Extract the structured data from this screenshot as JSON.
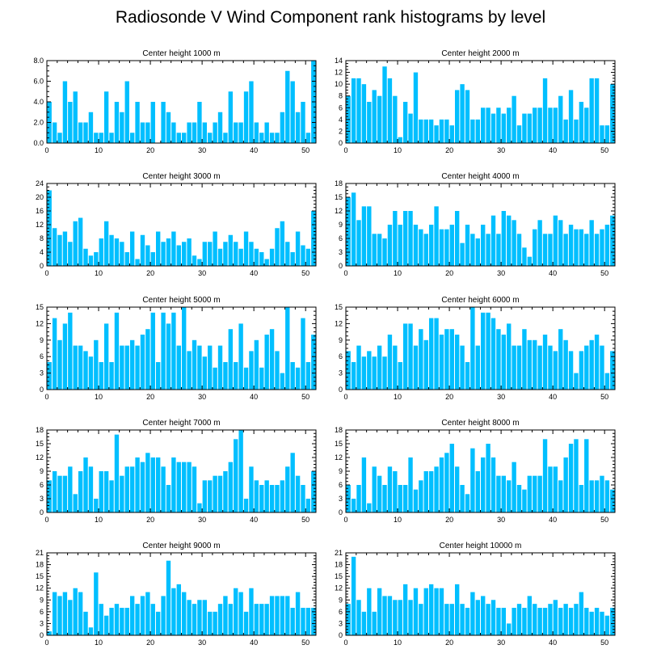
{
  "title": "Radiosonde V Wind Component rank histograms by level",
  "bar_color": "#00BFFF",
  "chart_data": [
    {
      "type": "bar",
      "title": "Center height 1000 m",
      "x_start": 0,
      "ylim": [
        0,
        8
      ],
      "yticks": [
        "0.0",
        "2.0",
        "4.0",
        "6.0",
        "8.0"
      ],
      "xticks": [
        0,
        10,
        20,
        30,
        40,
        50
      ],
      "values": [
        4,
        2,
        1,
        6,
        4,
        5,
        2,
        2,
        3,
        1,
        1,
        5,
        1,
        4,
        3,
        6,
        1,
        4,
        2,
        2,
        4,
        0,
        4,
        3,
        2,
        1,
        1,
        2,
        2,
        4,
        2,
        1,
        2,
        3,
        1,
        5,
        2,
        2,
        5,
        6,
        2,
        1,
        2,
        1,
        1,
        3,
        7,
        6,
        3,
        4,
        1,
        8
      ]
    },
    {
      "type": "bar",
      "title": "Center height 2000 m",
      "x_start": 0,
      "ylim": [
        0,
        14
      ],
      "yticks": [
        "0",
        "2",
        "4",
        "6",
        "8",
        "10",
        "12",
        "14"
      ],
      "xticks": [
        0,
        10,
        20,
        30,
        40,
        50
      ],
      "values": [
        8,
        11,
        11,
        10,
        7,
        9,
        8,
        13,
        11,
        8,
        1,
        7,
        5,
        12,
        4,
        4,
        4,
        3,
        4,
        4,
        3,
        9,
        10,
        9,
        4,
        4,
        6,
        6,
        5,
        6,
        5,
        6,
        8,
        3,
        5,
        5,
        6,
        6,
        11,
        6,
        6,
        8,
        4,
        9,
        4,
        7,
        6,
        11,
        11,
        3,
        3,
        10
      ]
    },
    {
      "type": "bar",
      "title": "Center height 3000 m",
      "x_start": 0,
      "ylim": [
        0,
        24
      ],
      "yticks": [
        "0",
        "4",
        "8",
        "12",
        "16",
        "20",
        "24"
      ],
      "xticks": [
        0,
        10,
        20,
        30,
        40,
        50
      ],
      "values": [
        22,
        11,
        9,
        10,
        7,
        13,
        14,
        5,
        3,
        4,
        8,
        13,
        9,
        8,
        7,
        4,
        10,
        2,
        9,
        6,
        4,
        10,
        7,
        8,
        10,
        6,
        7,
        8,
        3,
        2,
        7,
        7,
        10,
        5,
        7,
        9,
        7,
        5,
        10,
        7,
        5,
        4,
        2,
        5,
        11,
        13,
        7,
        4,
        10,
        6,
        5,
        16
      ]
    },
    {
      "type": "bar",
      "title": "Center height 4000 m",
      "x_start": 0,
      "ylim": [
        0,
        18
      ],
      "yticks": [
        "0",
        "3",
        "6",
        "9",
        "12",
        "15",
        "18"
      ],
      "xticks": [
        0,
        10,
        20,
        30,
        40,
        50
      ],
      "values": [
        15,
        16,
        10,
        13,
        13,
        7,
        7,
        6,
        9,
        12,
        9,
        12,
        12,
        9,
        8,
        7,
        9,
        13,
        8,
        8,
        9,
        12,
        5,
        9,
        7,
        6,
        9,
        7,
        11,
        7,
        12,
        11,
        10,
        7,
        4,
        2,
        8,
        10,
        7,
        7,
        11,
        10,
        7,
        9,
        8,
        8,
        7,
        10,
        7,
        8,
        9,
        11
      ]
    },
    {
      "type": "bar",
      "title": "Center height 5000 m",
      "x_start": 0,
      "ylim": [
        0,
        15
      ],
      "yticks": [
        "0",
        "3",
        "6",
        "9",
        "12",
        "15"
      ],
      "xticks": [
        0,
        10,
        20,
        30,
        40,
        50
      ],
      "values": [
        5,
        13,
        9,
        12,
        14,
        8,
        8,
        7,
        6,
        9,
        5,
        12,
        5,
        14,
        8,
        8,
        9,
        8,
        10,
        11,
        14,
        5,
        14,
        12,
        14,
        8,
        15,
        7,
        9,
        8,
        6,
        8,
        4,
        8,
        5,
        11,
        5,
        12,
        4,
        7,
        9,
        4,
        10,
        11,
        7,
        3,
        15,
        5,
        4,
        13,
        5,
        10
      ]
    },
    {
      "type": "bar",
      "title": "Center height 6000 m",
      "x_start": 0,
      "ylim": [
        0,
        15
      ],
      "yticks": [
        "0",
        "3",
        "6",
        "9",
        "12",
        "15"
      ],
      "xticks": [
        0,
        10,
        20,
        30,
        40,
        50
      ],
      "values": [
        7,
        5,
        8,
        6,
        7,
        6,
        8,
        6,
        10,
        8,
        5,
        12,
        12,
        8,
        11,
        9,
        13,
        13,
        10,
        11,
        11,
        10,
        8,
        5,
        15,
        8,
        14,
        14,
        13,
        11,
        10,
        12,
        8,
        8,
        11,
        9,
        9,
        8,
        10,
        8,
        7,
        11,
        9,
        7,
        3,
        7,
        8,
        9,
        10,
        8,
        3,
        7
      ]
    },
    {
      "type": "bar",
      "title": "Center height 7000 m",
      "x_start": 0,
      "ylim": [
        0,
        18
      ],
      "yticks": [
        "0",
        "3",
        "6",
        "9",
        "12",
        "15",
        "18"
      ],
      "xticks": [
        0,
        10,
        20,
        30,
        40,
        50
      ],
      "values": [
        7,
        9,
        8,
        8,
        10,
        4,
        9,
        12,
        10,
        3,
        9,
        9,
        7,
        17,
        8,
        10,
        10,
        12,
        11,
        13,
        12,
        12,
        10,
        6,
        12,
        11,
        11,
        11,
        10,
        2,
        7,
        7,
        8,
        8,
        9,
        11,
        16,
        18,
        3,
        10,
        7,
        6,
        7,
        6,
        6,
        7,
        10,
        13,
        8,
        6,
        3,
        9
      ]
    },
    {
      "type": "bar",
      "title": "Center height 8000 m",
      "x_start": 0,
      "ylim": [
        0,
        18
      ],
      "yticks": [
        "0",
        "3",
        "6",
        "9",
        "12",
        "15",
        "18"
      ],
      "xticks": [
        0,
        10,
        20,
        30,
        40,
        50
      ],
      "values": [
        6,
        3,
        6,
        12,
        2,
        10,
        8,
        6,
        10,
        9,
        6,
        6,
        12,
        5,
        7,
        9,
        9,
        10,
        12,
        13,
        15,
        10,
        6,
        4,
        14,
        9,
        12,
        15,
        12,
        8,
        8,
        7,
        11,
        6,
        5,
        8,
        8,
        8,
        16,
        10,
        10,
        7,
        12,
        15,
        16,
        6,
        16,
        7,
        7,
        8,
        7,
        5
      ]
    },
    {
      "type": "bar",
      "title": "Center height 9000 m",
      "x_start": 0,
      "ylim": [
        0,
        21
      ],
      "yticks": [
        "0",
        "3",
        "6",
        "9",
        "12",
        "15",
        "18",
        "21"
      ],
      "xticks": [
        0,
        10,
        20,
        30,
        40,
        50
      ],
      "values": [
        1,
        11,
        10,
        11,
        9,
        12,
        11,
        6,
        2,
        16,
        8,
        5,
        7,
        8,
        7,
        7,
        10,
        8,
        10,
        11,
        8,
        6,
        10,
        19,
        12,
        13,
        11,
        9,
        8,
        9,
        9,
        6,
        6,
        8,
        10,
        8,
        12,
        11,
        6,
        12,
        8,
        8,
        8,
        10,
        10,
        10,
        10,
        7,
        11,
        7,
        7,
        7
      ]
    },
    {
      "type": "bar",
      "title": "Center height 10000 m",
      "x_start": 0,
      "ylim": [
        0,
        21
      ],
      "yticks": [
        "0",
        "3",
        "6",
        "9",
        "12",
        "15",
        "18",
        "21"
      ],
      "xticks": [
        0,
        10,
        20,
        30,
        40,
        50
      ],
      "values": [
        8,
        20,
        9,
        6,
        12,
        6,
        12,
        10,
        10,
        9,
        9,
        13,
        9,
        12,
        8,
        12,
        13,
        12,
        12,
        8,
        8,
        13,
        8,
        7,
        11,
        9,
        10,
        8,
        9,
        7,
        7,
        3,
        7,
        8,
        7,
        10,
        8,
        7,
        7,
        8,
        9,
        7,
        8,
        7,
        8,
        11,
        7,
        6,
        7,
        6,
        5,
        7
      ]
    }
  ]
}
